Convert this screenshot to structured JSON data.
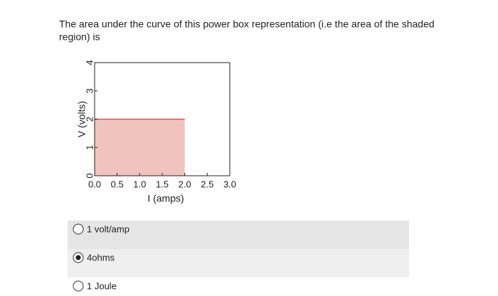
{
  "question_lines": [
    "The area under the curve of this power box representation (i.e the area of the shaded",
    "region) is"
  ],
  "chart_data": {
    "type": "area",
    "x": [
      0,
      2.0
    ],
    "values": [
      2,
      2
    ],
    "color": "#d9534f",
    "fill": "#f0c3bf",
    "xlabel": "I (amps)",
    "ylabel": "V (volts)",
    "xlim": [
      0,
      3.0
    ],
    "ylim": [
      0,
      4
    ],
    "xticks": [
      {
        "value": 0,
        "label": "0.0"
      },
      0.5,
      {
        "value": 1,
        "label": "1.0"
      },
      1.5,
      {
        "value": 2,
        "label": "2.0"
      },
      2.5,
      {
        "value": 3,
        "label": "3.0"
      }
    ],
    "yticks": [
      0,
      1,
      2,
      3,
      4
    ]
  },
  "options": [
    {
      "label": "1 volt/amp",
      "selected": false
    },
    {
      "label": "4ohms",
      "selected": true
    },
    {
      "label": "1 Joule",
      "selected": false
    }
  ]
}
